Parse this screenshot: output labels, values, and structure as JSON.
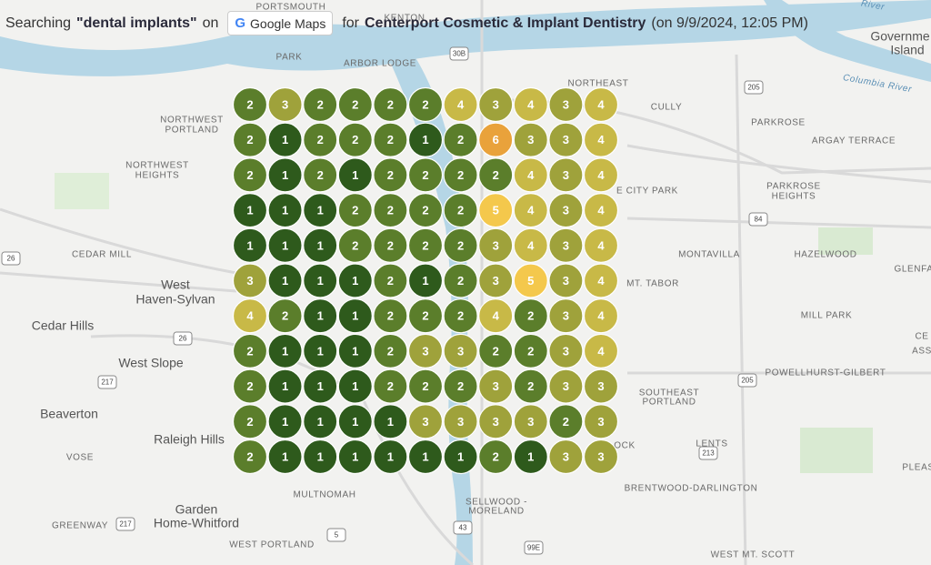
{
  "header": {
    "prefix": "Searching",
    "keyword": "\"dental implants\"",
    "on": "on",
    "source": "Google Maps",
    "for": "for",
    "business": "Centerport Cosmetic & Implant Dentistry",
    "timestamp": "(on 9/9/2024, 12:05 PM)"
  },
  "grid": {
    "rows": [
      [
        2,
        3,
        2,
        2,
        2,
        2,
        4,
        3,
        4,
        3,
        4
      ],
      [
        2,
        1,
        2,
        2,
        2,
        1,
        2,
        6,
        3,
        3,
        4
      ],
      [
        2,
        1,
        2,
        1,
        2,
        2,
        2,
        2,
        4,
        3,
        4
      ],
      [
        1,
        1,
        1,
        2,
        2,
        2,
        2,
        5,
        4,
        3,
        4
      ],
      [
        1,
        1,
        1,
        2,
        2,
        2,
        2,
        3,
        4,
        3,
        4
      ],
      [
        3,
        1,
        1,
        1,
        2,
        1,
        2,
        3,
        5,
        3,
        4
      ],
      [
        4,
        2,
        1,
        1,
        2,
        2,
        2,
        4,
        2,
        3,
        4
      ],
      [
        2,
        1,
        1,
        1,
        2,
        3,
        3,
        2,
        2,
        3,
        4
      ],
      [
        2,
        1,
        1,
        1,
        2,
        2,
        2,
        3,
        2,
        3,
        3
      ],
      [
        2,
        1,
        1,
        1,
        1,
        3,
        3,
        3,
        3,
        2,
        3
      ],
      [
        2,
        1,
        1,
        1,
        1,
        1,
        1,
        2,
        1,
        3,
        3
      ]
    ],
    "rank_colors": {
      "1": "#2e5a1c",
      "2": "#5b7e2b",
      "3": "#9fa23b",
      "4": "#c8b947",
      "5": "#f4c84c",
      "6": "#e9a23b"
    }
  },
  "map": {
    "labels": [
      "PORTSMOUTH",
      "KENTON",
      "PARK",
      "ARBOR LODGE",
      "NORTHEAST",
      "CULLY",
      "PARKROSE",
      "ARGAY TERRACE",
      "NORTHWEST",
      "PORTLAND",
      "NORTHWEST",
      "HEIGHTS",
      "PARKROSE",
      "HEIGHTS",
      "E CITY PARK",
      "MONTAVILLA",
      "HAZELWOOD",
      "CEDAR MILL",
      "GLENFA",
      "MT. TABOR",
      "MILL PARK",
      "POWELLHURST-GILBERT",
      "SOUTHEAST",
      "PORTLAND",
      "LENTS",
      "VOSE",
      "BRENTWOOD-DARLINGTON",
      "MULTNOMAH",
      "SELLWOOD -",
      "MORELAND",
      "GREENWAY",
      "WEST PORTLAND",
      "WEST MT. SCOTT",
      "OCK",
      "CE",
      "ASS",
      "PLEAS"
    ],
    "places": [
      "West",
      "Haven-Sylvan",
      "Cedar Hills",
      "West Slope",
      "Beaverton",
      "Raleigh Hills",
      "Garden",
      "Home-Whitford",
      "Governme",
      "Island"
    ],
    "water": [
      "Columbia River",
      "River"
    ],
    "shields": [
      "30B",
      "205",
      "84",
      "26",
      "26",
      "217",
      "205",
      "213",
      "217",
      "5",
      "43",
      "99E"
    ]
  }
}
